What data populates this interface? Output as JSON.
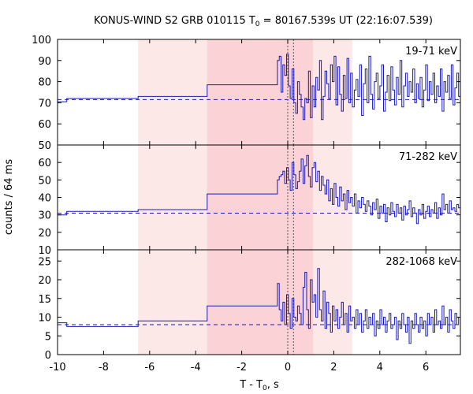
{
  "chart_data": {
    "type": "line",
    "title": "KONUS-WIND S2 GRB 010115 T",
    "title_sub": "0",
    "title_rest": " = 80167.539s UT (22:16:07.539)",
    "xlabel": "T - T",
    "xlabel_sub": "0",
    "xlabel_rest": ", s",
    "ylabel": "counts / 64 ms",
    "xlim": [
      -10,
      7.5
    ],
    "x_ticks": [
      -10,
      -8,
      -6,
      -4,
      -2,
      0,
      2,
      4,
      6
    ],
    "x_tick_labels": [
      "-10",
      "-8",
      "-6",
      "-4",
      "-2",
      "0",
      "2",
      "4",
      "6"
    ],
    "shaded_regions": [
      {
        "from": -6.5,
        "to": 2.8,
        "color": "#fde8e8"
      },
      {
        "from": -3.5,
        "to": 1.1,
        "color": "#fbd3d6"
      }
    ],
    "vlines": [
      0.0,
      0.25
    ],
    "colors": {
      "series": "#1a1ab0",
      "background_line": "#1a1ab0",
      "vline": "#555555"
    },
    "panels": [
      {
        "band": "19-71 keV",
        "ylim": [
          50,
          100
        ],
        "y_ticks": [
          50,
          60,
          70,
          80,
          90,
          100
        ],
        "y_tick_labels": [
          "50",
          "60",
          "70",
          "80",
          "90",
          "100"
        ],
        "background": 71.5,
        "coarse": [
          [
            -10,
            70.5
          ],
          [
            -9.6,
            72
          ],
          [
            -6.5,
            73
          ],
          [
            -3.5,
            78.5
          ],
          [
            -0.45,
            90
          ]
        ],
        "fine": [
          90,
          92,
          75,
          88,
          83,
          93,
          78,
          72,
          86,
          70,
          65,
          80,
          74,
          68,
          62,
          72,
          70,
          85,
          63,
          78,
          68,
          82,
          76,
          90,
          62,
          73,
          85,
          79,
          72,
          88,
          80,
          92,
          69,
          87,
          74,
          66,
          83,
          72,
          91,
          70,
          84,
          68,
          76,
          81,
          73,
          88,
          64,
          79,
          86,
          70,
          92,
          74,
          67,
          80,
          84,
          72,
          78,
          88,
          66,
          75,
          83,
          71,
          87,
          76,
          69,
          82,
          74,
          90,
          68,
          78,
          84,
          73,
          80,
          75,
          86,
          70,
          79,
          72,
          82,
          68,
          76,
          88,
          71,
          80,
          74,
          84,
          70,
          78,
          73,
          86,
          66,
          80,
          75,
          83,
          72,
          88,
          69,
          77,
          84,
          73
        ]
      },
      {
        "band": "71-282 keV",
        "ylim": [
          10,
          70
        ],
        "y_ticks": [
          10,
          20,
          30,
          40,
          50,
          60
        ],
        "y_tick_labels": [
          "10",
          "20",
          "30",
          "40",
          "50",
          "60"
        ],
        "background": 31,
        "coarse": [
          [
            -10,
            30
          ],
          [
            -9.6,
            32
          ],
          [
            -6.5,
            33
          ],
          [
            -3.5,
            42
          ],
          [
            -0.45,
            48
          ]
        ],
        "fine": [
          50,
          52,
          53,
          55,
          48,
          57,
          50,
          44,
          60,
          53,
          45,
          49,
          55,
          62,
          48,
          58,
          64,
          52,
          46,
          57,
          60,
          49,
          55,
          44,
          52,
          47,
          42,
          50,
          38,
          45,
          36,
          48,
          40,
          35,
          46,
          38,
          42,
          33,
          44,
          37,
          40,
          35,
          42,
          31,
          38,
          34,
          40,
          36,
          32,
          38,
          35,
          30,
          37,
          33,
          39,
          28,
          35,
          31,
          36,
          26,
          34,
          30,
          37,
          32,
          29,
          36,
          31,
          34,
          27,
          35,
          30,
          33,
          38,
          29,
          34,
          31,
          25,
          33,
          30,
          36,
          28,
          32,
          35,
          29,
          33,
          31,
          37,
          28,
          34,
          30,
          42,
          33,
          36,
          31,
          38,
          33,
          34,
          32,
          36,
          34
        ]
      },
      {
        "band": "282-1068 keV",
        "ylim": [
          0,
          28
        ],
        "y_ticks": [
          0,
          5,
          10,
          15,
          20,
          25
        ],
        "y_tick_labels": [
          "0",
          "5",
          "10",
          "15",
          "20",
          "25"
        ],
        "background": 8,
        "coarse": [
          [
            -10,
            8.5
          ],
          [
            -9.6,
            7.5
          ],
          [
            -6.5,
            9
          ],
          [
            -3.5,
            13
          ],
          [
            -0.45,
            19
          ]
        ],
        "fine": [
          19,
          12,
          9,
          14,
          8,
          16,
          11,
          7,
          15,
          10,
          9,
          13,
          11,
          8,
          18,
          22,
          12,
          7,
          20,
          14,
          16,
          10,
          23,
          12,
          9,
          17,
          7,
          14,
          11,
          6,
          13,
          9,
          12,
          7,
          10,
          14,
          8,
          11,
          6,
          13,
          9,
          10,
          7,
          12,
          8,
          11,
          6,
          9,
          12,
          7,
          10,
          8,
          11,
          5,
          9,
          7,
          12,
          8,
          10,
          6,
          9,
          11,
          7,
          8,
          10,
          4,
          9,
          7,
          11,
          8,
          6,
          10,
          3,
          9,
          7,
          11,
          8,
          6,
          10,
          7,
          9,
          5,
          11,
          8,
          10,
          6,
          12,
          8,
          9,
          7,
          13,
          8,
          10,
          6,
          12,
          9,
          7,
          11,
          8,
          10
        ]
      }
    ]
  }
}
